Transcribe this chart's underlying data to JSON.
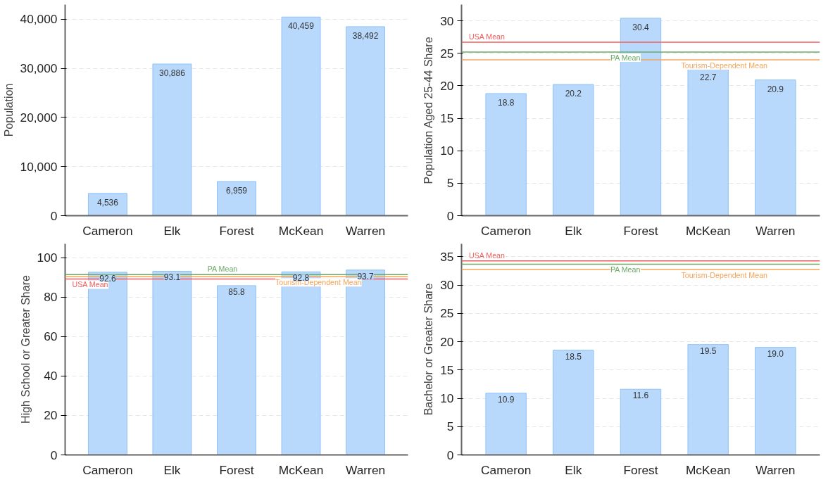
{
  "chart_data": [
    {
      "type": "bar",
      "ylabel": "Population",
      "categories": [
        "Cameron",
        "Elk",
        "Forest",
        "McKean",
        "Warren"
      ],
      "values": [
        4536,
        30886,
        6959,
        40459,
        38492
      ],
      "value_labels": [
        "4,536",
        "30,886",
        "6,959",
        "40,459",
        "38,492"
      ],
      "color": "#b8d9fc",
      "ylim": [
        0,
        43000
      ],
      "yticks": [
        0,
        {
          "value": 10000,
          "label": "10,000"
        },
        {
          "value": 20000,
          "label": "20,000"
        },
        {
          "value": 30000,
          "label": "30,000"
        },
        {
          "value": 40000,
          "label": "40,000"
        }
      ],
      "grid": "y"
    },
    {
      "type": "bar",
      "ylabel": "Population Aged 25-44 Share",
      "categories": [
        "Cameron",
        "Elk",
        "Forest",
        "McKean",
        "Warren"
      ],
      "values": [
        18.8,
        20.2,
        30.4,
        22.7,
        20.9
      ],
      "value_labels": [
        "18.8",
        "20.2",
        "30.4",
        "22.7",
        "20.9"
      ],
      "color": "#b8d9fc",
      "ylim": [
        0,
        32.5
      ],
      "yticks": [
        0,
        5,
        10,
        15,
        20,
        25,
        30
      ],
      "grid": "y",
      "ref_lines": [
        {
          "axis": "y",
          "value": 26.7,
          "label": "USA Mean",
          "color": "#f25c5c"
        },
        {
          "axis": "y",
          "value": 25.2,
          "label": "PA Mean",
          "color": "#6aaa64"
        },
        {
          "axis": "y",
          "value": 24.0,
          "label": "Tourism-Dependent Mean",
          "color": "#f5a55a"
        }
      ]
    },
    {
      "type": "bar",
      "ylabel": "High School or Greater Share",
      "categories": [
        "Cameron",
        "Elk",
        "Forest",
        "McKean",
        "Warren"
      ],
      "values": [
        92.6,
        93.1,
        85.8,
        92.8,
        93.7
      ],
      "value_labels": [
        "92.6",
        "93.1",
        "85.8",
        "92.8",
        "93.7"
      ],
      "color": "#b8d9fc",
      "ylim": [
        0,
        107
      ],
      "yticks": [
        0,
        20,
        40,
        60,
        80,
        100
      ],
      "grid": "y",
      "ref_lines": [
        {
          "axis": "y",
          "value": 89.2,
          "label": "USA Mean",
          "color": "#f25c5c"
        },
        {
          "axis": "y",
          "value": 91.4,
          "label": "PA Mean",
          "color": "#6aaa64"
        },
        {
          "axis": "y",
          "value": 90.3,
          "label": "Tourism-Dependent Mean",
          "color": "#f5a55a"
        }
      ]
    },
    {
      "type": "bar",
      "ylabel": "Bachelor or Greater Share",
      "categories": [
        "Cameron",
        "Elk",
        "Forest",
        "McKean",
        "Warren"
      ],
      "values": [
        10.9,
        18.5,
        11.6,
        19.5,
        19.0
      ],
      "value_labels": [
        "10.9",
        "18.5",
        "11.6",
        "19.5",
        "19.0"
      ],
      "color": "#b8d9fc",
      "ylim": [
        0,
        37.3
      ],
      "yticks": [
        0,
        5,
        10,
        15,
        20,
        25,
        30,
        35
      ],
      "grid": "y",
      "ref_lines": [
        {
          "axis": "y",
          "value": 34.3,
          "label": "USA Mean",
          "color": "#f25c5c"
        },
        {
          "axis": "y",
          "value": 33.7,
          "label": "PA Mean",
          "color": "#6aaa64"
        },
        {
          "axis": "y",
          "value": 32.8,
          "label": "Tourism-Dependent Mean",
          "color": "#f5a55a"
        }
      ]
    }
  ]
}
